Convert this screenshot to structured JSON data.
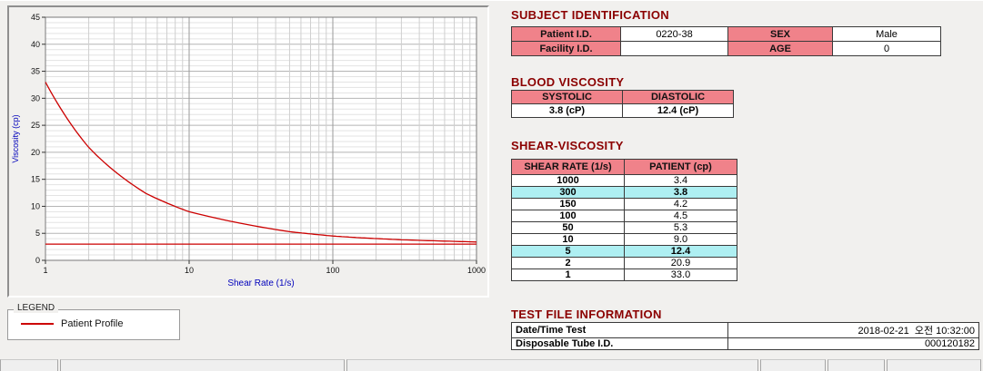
{
  "chart": {
    "ylabel": "Viscosity (cp)",
    "xlabel": "Shear Rate (1/s)",
    "legend_title": "LEGEND",
    "legend_items": [
      {
        "label": "Patient Profile",
        "color": "#cc0000"
      }
    ]
  },
  "chart_data": {
    "type": "line",
    "x": [
      1,
      2,
      5,
      10,
      50,
      100,
      150,
      300,
      1000
    ],
    "series": [
      {
        "name": "Patient Profile",
        "values": [
          33.0,
          20.9,
          12.4,
          9.0,
          5.3,
          4.5,
          4.2,
          3.8,
          3.4
        ]
      }
    ],
    "reference_line_y": 3.0,
    "title": "",
    "xlabel": "Shear Rate (1/s)",
    "ylabel": "Viscosity (cp)",
    "xscale": "log",
    "xlim": [
      1,
      1000
    ],
    "ylim": [
      0,
      45
    ],
    "xticks": [
      1,
      10,
      100,
      1000
    ],
    "yticks": [
      0,
      5,
      10,
      15,
      20,
      25,
      30,
      35,
      40,
      45
    ],
    "grid": true,
    "legend_position": "below-left",
    "line_color": "#cc0000"
  },
  "subject": {
    "title": "SUBJECT IDENTIFICATION",
    "rows": [
      {
        "label1": "Patient I.D.",
        "value1": "0220-38",
        "label2": "SEX",
        "value2": "Male"
      },
      {
        "label1": "Facility I.D.",
        "value1": "",
        "label2": "AGE",
        "value2": "0"
      }
    ]
  },
  "blood_viscosity": {
    "title": "BLOOD VISCOSITY",
    "headers": [
      "SYSTOLIC",
      "DIASTOLIC"
    ],
    "values": [
      "3.8 (cP)",
      "12.4 (cP)"
    ]
  },
  "shear_viscosity": {
    "title": "SHEAR-VISCOSITY",
    "headers": [
      "SHEAR RATE (1/s)",
      "PATIENT (cp)"
    ],
    "rows": [
      {
        "rate": "1000",
        "value": "3.4",
        "highlight": false
      },
      {
        "rate": "300",
        "value": "3.8",
        "highlight": true
      },
      {
        "rate": "150",
        "value": "4.2",
        "highlight": false
      },
      {
        "rate": "100",
        "value": "4.5",
        "highlight": false
      },
      {
        "rate": "50",
        "value": "5.3",
        "highlight": false
      },
      {
        "rate": "10",
        "value": "9.0",
        "highlight": false
      },
      {
        "rate": "5",
        "value": "12.4",
        "highlight": true
      },
      {
        "rate": "2",
        "value": "20.9",
        "highlight": false
      },
      {
        "rate": "1",
        "value": "33.0",
        "highlight": false
      }
    ]
  },
  "test_file": {
    "title": "TEST FILE INFORMATION",
    "rows": [
      {
        "label": "Date/Time Test",
        "value": "2018-02-21  오전 10:32:00"
      },
      {
        "label": "Disposable Tube I.D.",
        "value": "000120182"
      }
    ]
  },
  "colors": {
    "heading_red": "#8b0000",
    "table_header_pink": "#f0828a",
    "highlight_cyan": "#aeeff2",
    "curve_red": "#cc0000",
    "axis_label_blue": "#0000bb",
    "background_gray": "#f1f0ee"
  }
}
